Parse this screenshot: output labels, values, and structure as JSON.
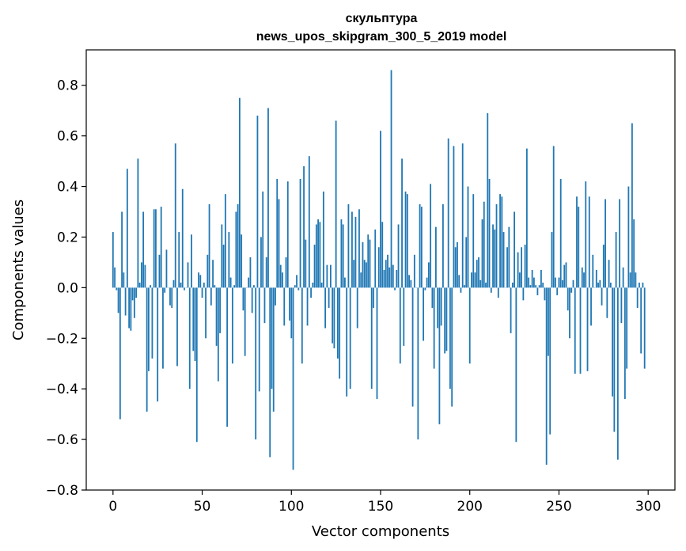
{
  "chart_data": {
    "type": "bar",
    "title_line1": "скульптура",
    "title_line2": "news_upos_skipgram_300_5_2019 model",
    "xlabel": "Vector components",
    "ylabel": "Components values",
    "xlim": [
      -15,
      315
    ],
    "ylim": [
      -0.8,
      0.94
    ],
    "xticks": [
      0,
      50,
      100,
      150,
      200,
      250,
      300
    ],
    "yticks": [
      -0.8,
      -0.6,
      -0.4,
      -0.2,
      0.0,
      0.2,
      0.4,
      0.6,
      0.8
    ],
    "ytick_labels": [
      "−0.8",
      "−0.6",
      "−0.4",
      "−0.2",
      "0.0",
      "0.2",
      "0.4",
      "0.6",
      "0.8"
    ],
    "bar_color": "#1f77b4",
    "grid": false,
    "values": [
      0.22,
      0.08,
      -0.01,
      -0.1,
      -0.52,
      0.3,
      0.06,
      -0.11,
      0.47,
      -0.16,
      -0.17,
      -0.05,
      -0.12,
      -0.04,
      0.51,
      0.02,
      0.1,
      0.3,
      0.09,
      -0.49,
      -0.33,
      0.01,
      -0.28,
      0.31,
      0.31,
      -0.45,
      0.13,
      0.32,
      -0.32,
      -0.02,
      0.15,
      0.0,
      -0.07,
      -0.08,
      0.03,
      0.57,
      -0.31,
      0.22,
      0.02,
      0.39,
      -0.01,
      0.0,
      0.1,
      -0.4,
      0.21,
      -0.25,
      -0.29,
      -0.61,
      0.06,
      0.05,
      -0.04,
      0.02,
      -0.2,
      0.13,
      0.33,
      -0.07,
      0.11,
      0.01,
      -0.23,
      -0.37,
      -0.18,
      0.25,
      0.17,
      0.37,
      -0.55,
      0.22,
      0.04,
      -0.3,
      0.01,
      0.3,
      0.33,
      0.75,
      0.21,
      -0.09,
      -0.27,
      0.0,
      0.04,
      0.12,
      -0.1,
      0.01,
      -0.6,
      0.68,
      -0.41,
      0.2,
      0.38,
      -0.14,
      0.12,
      0.71,
      -0.67,
      -0.4,
      -0.49,
      -0.07,
      0.43,
      0.35,
      0.09,
      0.06,
      -0.15,
      0.12,
      0.42,
      -0.13,
      -0.2,
      -0.72,
      0.01,
      0.05,
      -0.01,
      0.43,
      -0.3,
      0.48,
      0.19,
      -0.15,
      0.52,
      -0.04,
      0.02,
      0.17,
      0.25,
      0.27,
      0.26,
      0.02,
      0.38,
      -0.16,
      0.09,
      -0.08,
      0.09,
      -0.22,
      -0.24,
      0.66,
      -0.28,
      -0.36,
      0.27,
      0.25,
      0.04,
      -0.43,
      0.33,
      -0.4,
      0.3,
      0.11,
      0.28,
      -0.16,
      0.31,
      0.06,
      0.18,
      0.11,
      0.1,
      0.21,
      0.19,
      -0.4,
      -0.08,
      0.23,
      -0.44,
      0.16,
      0.62,
      0.26,
      0.07,
      0.11,
      0.13,
      0.08,
      0.86,
      0.09,
      -0.01,
      0.07,
      0.25,
      -0.3,
      0.51,
      -0.23,
      0.38,
      0.37,
      0.05,
      0.03,
      -0.47,
      0.13,
      0.0,
      -0.6,
      0.33,
      0.32,
      -0.21,
      -0.01,
      0.04,
      0.1,
      0.41,
      -0.08,
      -0.32,
      0.24,
      -0.16,
      -0.54,
      -0.15,
      0.33,
      -0.26,
      -0.25,
      0.59,
      -0.4,
      -0.47,
      0.56,
      0.16,
      0.18,
      0.05,
      -0.02,
      0.57,
      0.01,
      0.2,
      0.4,
      -0.3,
      0.06,
      0.37,
      0.06,
      0.11,
      0.12,
      0.03,
      0.27,
      0.34,
      0.02,
      0.69,
      0.43,
      -0.02,
      0.25,
      0.23,
      0.33,
      -0.04,
      0.37,
      0.36,
      0.22,
      0.0,
      0.16,
      0.24,
      -0.18,
      0.02,
      0.3,
      -0.61,
      0.14,
      0.06,
      0.16,
      -0.05,
      0.17,
      0.55,
      0.04,
      0.01,
      0.07,
      0.04,
      0.01,
      -0.03,
      0.01,
      0.07,
      0.02,
      -0.05,
      -0.7,
      -0.27,
      -0.58,
      0.22,
      0.56,
      0.04,
      -0.03,
      0.04,
      0.43,
      0.03,
      0.09,
      0.1,
      -0.09,
      -0.2,
      -0.02,
      0.03,
      -0.34,
      0.36,
      0.32,
      -0.34,
      0.08,
      0.06,
      0.42,
      -0.33,
      0.36,
      -0.15,
      0.13,
      0.0,
      0.07,
      0.02,
      0.03,
      -0.07,
      0.17,
      0.35,
      -0.12,
      0.11,
      0.02,
      -0.43,
      -0.57,
      0.22,
      -0.68,
      0.35,
      -0.14,
      0.08,
      -0.44,
      -0.32,
      0.4,
      0.06,
      0.65,
      0.27,
      0.06,
      -0.08,
      0.02,
      -0.26,
      0.02,
      -0.32
    ]
  }
}
